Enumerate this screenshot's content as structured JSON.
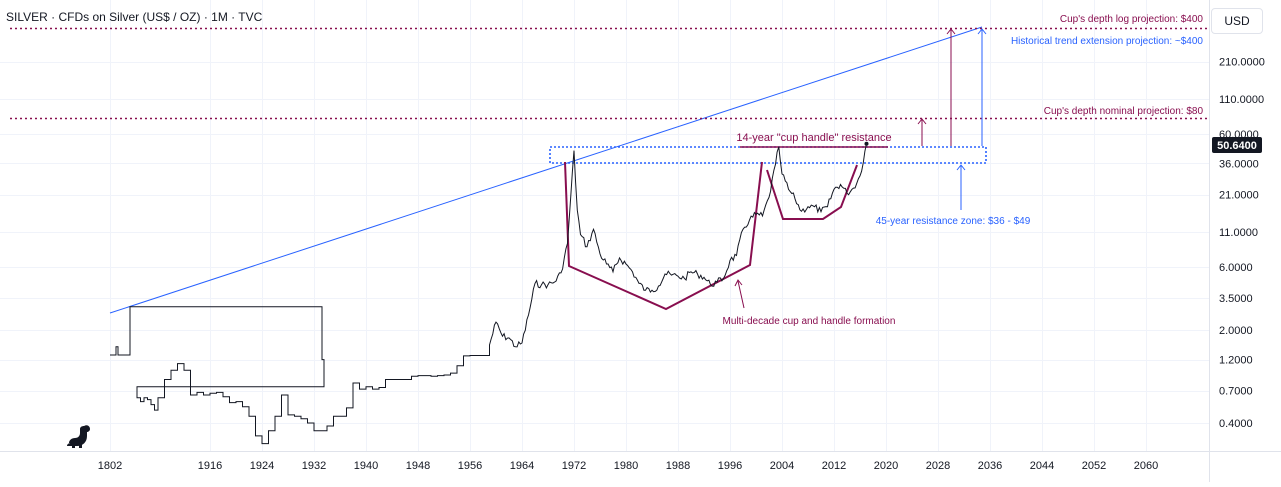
{
  "header": {
    "symbol": "SILVER",
    "description": "CFDs on Silver (US$ / OZ)",
    "interval": "1M",
    "source": "TVC",
    "title": "SILVER · CFDs on Silver (US$ / OZ) · 1M · TVC"
  },
  "currency_button": "USD",
  "last_price": "50.6400",
  "colors": {
    "price_line": "#131722",
    "trendline": "#2962ff",
    "pattern": "#880e4f",
    "resistance_zone": "#2962ff",
    "price_badge_bg": "#131722",
    "grid": "#f0f3fa"
  },
  "icons": {
    "logo": "dinosaur-icon"
  },
  "chart_data": {
    "type": "line",
    "title": "SILVER · CFDs on Silver (US$ / OZ) · 1M · TVC",
    "yscale": "log",
    "grid": true,
    "legend": "none",
    "x_ticks": [
      "1802",
      "1916",
      "1924",
      "1932",
      "1940",
      "1948",
      "1956",
      "1964",
      "1972",
      "1980",
      "1988",
      "1996",
      "2004",
      "2012",
      "2020",
      "2028",
      "2036",
      "2044",
      "2052",
      "2060"
    ],
    "y_ticks": [
      "0.4000",
      "0.7000",
      "1.2000",
      "2.0000",
      "3.5000",
      "6.0000",
      "11.0000",
      "21.0000",
      "36.0000",
      "60.0000",
      "110.0000",
      "210.0000"
    ],
    "y_tick_values": [
      0.4,
      0.7,
      1.2,
      2,
      3.5,
      6,
      11,
      21,
      36,
      60,
      110,
      210
    ],
    "series": [
      {
        "x": [
          1802,
          1803,
          1804,
          1805,
          1806,
          1807,
          1808,
          1809,
          1810,
          1812,
          1908,
          1909,
          1910,
          1911,
          1912,
          1913,
          1914,
          1915,
          1916,
          1917,
          1918,
          1919,
          1920,
          1921,
          1922,
          1923,
          1924,
          1925,
          1926,
          1927,
          1928,
          1929,
          1930,
          1931,
          1932,
          1933,
          1934,
          1935,
          1936,
          1937,
          1938,
          1939,
          1940,
          1941,
          1942,
          1943,
          1944,
          1945,
          1946,
          1947,
          1948,
          1949,
          1950,
          1951,
          1952,
          1953,
          1954,
          1955,
          1956,
          1957,
          1958,
          1959,
          1960,
          1961,
          1962,
          1963,
          1964,
          1965,
          1966,
          1967,
          1968,
          1969,
          1970,
          1971,
          1972,
          1973,
          1974,
          1975,
          1976,
          1977,
          1978,
          1979,
          1980,
          1980.5,
          1981,
          1982,
          1983,
          1984,
          1985,
          1986,
          1987,
          1988,
          1989,
          1990,
          1991,
          1992,
          1993,
          1994,
          1995,
          1996,
          1997,
          1998,
          1999,
          2000,
          2001,
          2002,
          2003,
          2004,
          2005,
          2006,
          2007,
          2008,
          2009,
          2010,
          2011,
          2011.5,
          2012,
          2013,
          2014,
          2015,
          2016,
          2017,
          2018,
          2019,
          2020,
          2021,
          2022,
          2023,
          2024,
          2025
        ],
        "values": [
          1.3,
          1.3,
          1.3,
          1.5,
          1.3,
          1.3,
          1.3,
          1.3,
          1.3,
          3.0,
          1.2,
          0.75,
          0.62,
          0.58,
          0.62,
          0.6,
          0.55,
          0.5,
          0.62,
          0.85,
          1.0,
          1.12,
          1.0,
          0.65,
          0.68,
          0.65,
          0.67,
          0.68,
          0.63,
          0.57,
          0.58,
          0.53,
          0.45,
          0.32,
          0.28,
          0.35,
          0.45,
          0.65,
          0.46,
          0.45,
          0.43,
          0.4,
          0.35,
          0.35,
          0.38,
          0.45,
          0.45,
          0.52,
          0.8,
          0.72,
          0.75,
          0.72,
          0.74,
          0.85,
          0.85,
          0.85,
          0.85,
          0.9,
          0.91,
          0.91,
          0.9,
          0.91,
          0.92,
          0.95,
          1.08,
          1.28,
          1.29,
          1.29,
          1.29,
          1.55,
          2.3,
          1.8,
          1.75,
          1.5,
          1.6,
          2.6,
          4.5,
          4.4,
          4.4,
          4.6,
          5.4,
          9.0,
          45.0,
          16.0,
          10.5,
          8.5,
          11.5,
          7.5,
          6.3,
          5.5,
          7.0,
          6.3,
          5.5,
          4.5,
          4.0,
          4.0,
          4.3,
          5.3,
          5.2,
          5.1,
          4.9,
          5.5,
          5.3,
          5.0,
          4.4,
          4.6,
          4.9,
          6.7,
          7.3,
          11.5,
          13.5,
          14.9,
          14.5,
          20.0,
          35.5,
          48.0,
          30.0,
          23.0,
          19.5,
          15.7,
          17.0,
          17.0,
          15.6,
          17.0,
          23.0,
          25.0,
          21.5,
          23.5,
          29.0,
          50.64
        ],
        "color": "#131722"
      }
    ],
    "annotations": [
      {
        "label": "Cup's depth log projection: $400",
        "value": 400,
        "color": "#880e4f",
        "style": "dotted"
      },
      {
        "label": "Historical trend extension projection: ~$400",
        "value": 400,
        "color": "#2962ff"
      },
      {
        "label": "Cup's depth nominal projection: $80",
        "value": 80,
        "color": "#880e4f",
        "style": "dotted"
      },
      {
        "label": "14-year \"cup handle\" resistance",
        "value": 49,
        "color": "#880e4f"
      },
      {
        "label": "45-year resistance zone: $36 - $49",
        "range": [
          36,
          49
        ],
        "color": "#2962ff"
      },
      {
        "label": "Multi-decade cup and handle formation",
        "color": "#880e4f"
      }
    ]
  }
}
